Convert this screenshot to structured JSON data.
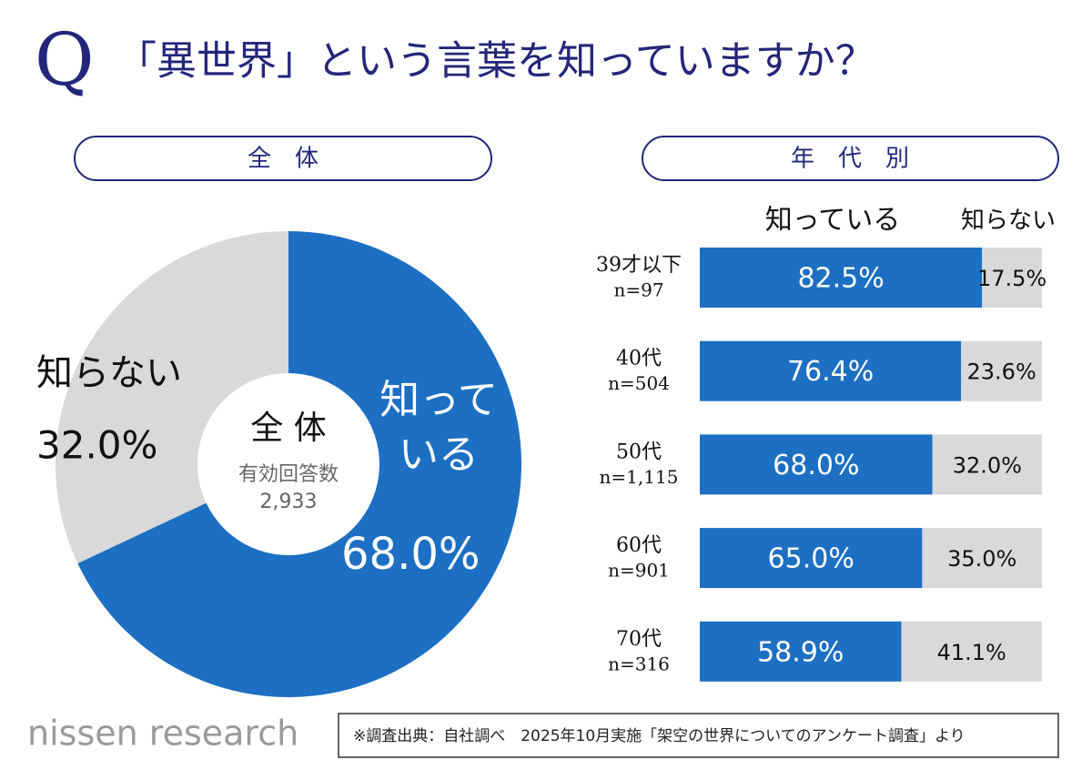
{
  "header": {
    "q": "Q",
    "title": "「異世界」という言葉を知っていますか？"
  },
  "chart_data": [
    {
      "type": "pie",
      "title": "全　体",
      "center": {
        "title": "全 体",
        "caption": "有効回答数",
        "total": {
          "value": 2933,
          "label": "2,933"
        }
      },
      "categories": [
        "知っている",
        "知らない"
      ],
      "values": [
        68.0,
        32.0
      ],
      "value_labels": [
        "68.0%",
        "32.0%"
      ],
      "colors": [
        "#1c6fc2",
        "#d9d9d9"
      ]
    },
    {
      "type": "bar",
      "title": "年　代　別",
      "orientation": "horizontal",
      "stacked": true,
      "categories": [
        "39才以下",
        "40代",
        "50代",
        "60代",
        "70代"
      ],
      "sample_sizes": [
        "n=97",
        "n=504",
        "n=1,115",
        "n=901",
        "n=316"
      ],
      "series": [
        {
          "name": "知っている",
          "color": "#1c6fc2",
          "values": [
            82.5,
            76.4,
            68.0,
            65.0,
            58.9
          ],
          "value_labels": [
            "82.5%",
            "76.4%",
            "68.0%",
            "65.0%",
            "58.9%"
          ]
        },
        {
          "name": "知らない",
          "color": "#d9d9d9",
          "values": [
            17.5,
            23.6,
            32.0,
            35.0,
            41.1
          ],
          "value_labels": [
            "17.5%",
            "23.6%",
            "32.0%",
            "35.0%",
            "41.1%"
          ]
        }
      ]
    }
  ],
  "footer": {
    "logo": "nissen research",
    "source": "※調査出典：自社調べ　2025年10月実施「架空の世界についてのアンケート調査」より"
  }
}
